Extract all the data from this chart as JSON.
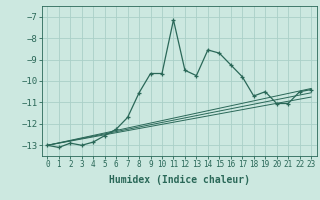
{
  "xlabel": "Humidex (Indice chaleur)",
  "bg_color": "#cce8e0",
  "grid_color": "#aad0c8",
  "line_color": "#2a6858",
  "xlim": [
    -0.5,
    23.5
  ],
  "ylim": [
    -13.5,
    -6.5
  ],
  "yticks": [
    -13,
    -12,
    -11,
    -10,
    -9,
    -8,
    -7
  ],
  "xticks": [
    0,
    1,
    2,
    3,
    4,
    5,
    6,
    7,
    8,
    9,
    10,
    11,
    12,
    13,
    14,
    15,
    16,
    17,
    18,
    19,
    20,
    21,
    22,
    23
  ],
  "x": [
    0,
    1,
    2,
    3,
    4,
    5,
    6,
    7,
    8,
    9,
    10,
    11,
    12,
    13,
    14,
    15,
    16,
    17,
    18,
    19,
    20,
    21,
    22,
    23
  ],
  "y": [
    -13.0,
    -13.1,
    -12.9,
    -13.0,
    -12.85,
    -12.55,
    -12.25,
    -11.7,
    -10.55,
    -9.65,
    -9.65,
    -7.15,
    -9.5,
    -9.75,
    -8.55,
    -8.7,
    -9.25,
    -9.8,
    -10.7,
    -10.5,
    -11.05,
    -11.05,
    -10.5,
    -10.4
  ],
  "linear_series": [
    {
      "x": [
        0,
        23
      ],
      "y": [
        -13.0,
        -10.35
      ]
    },
    {
      "x": [
        0,
        23
      ],
      "y": [
        -13.0,
        -10.55
      ]
    },
    {
      "x": [
        0,
        23
      ],
      "y": [
        -13.0,
        -10.75
      ]
    }
  ],
  "xlabel_fontsize": 7,
  "tick_fontsize": 6,
  "linewidth": 0.9,
  "marker": "+",
  "markersize": 3.5
}
